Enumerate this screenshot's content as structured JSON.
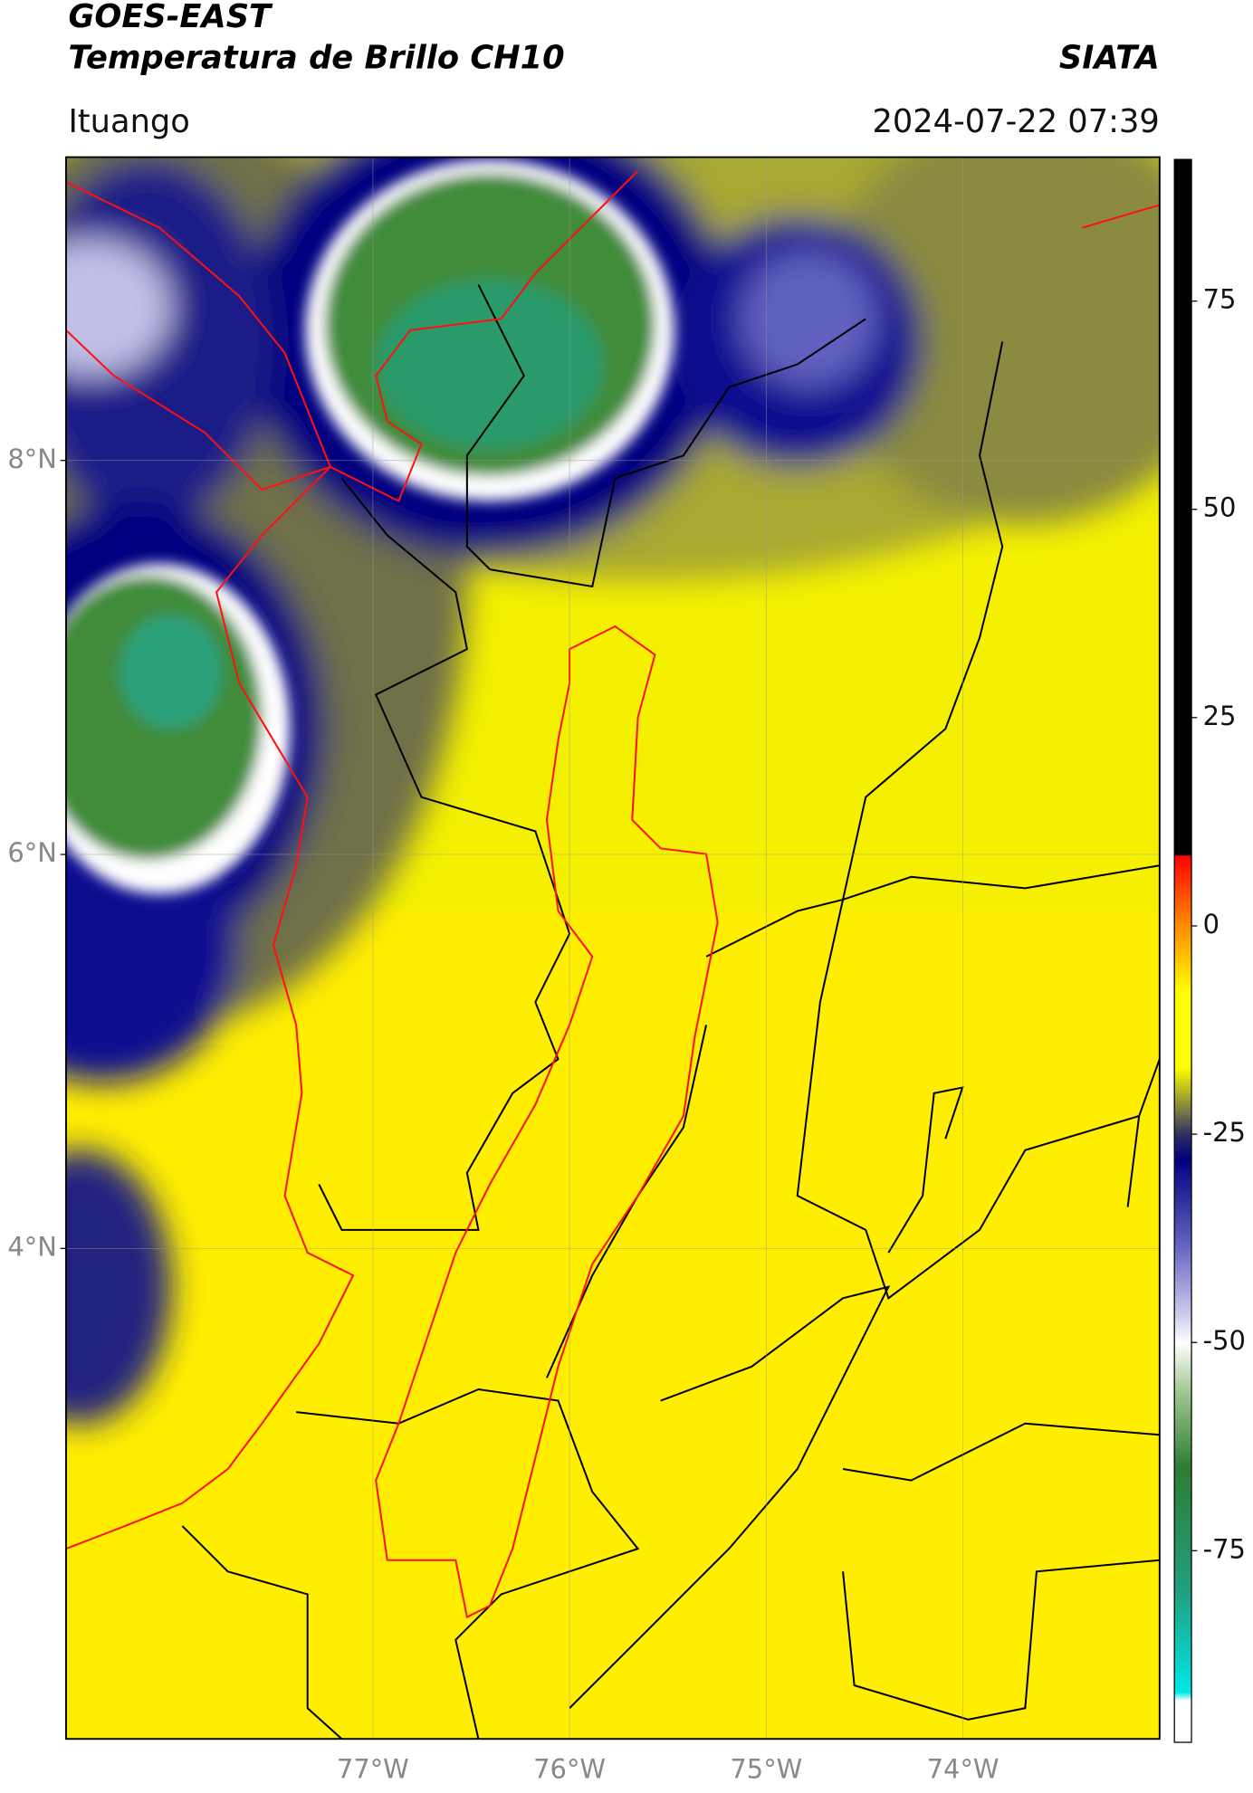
{
  "header": {
    "title": "GOES-EAST",
    "subtitle": "Temperatura de Brillo CH10",
    "source": "SIATA",
    "location": "Ituango",
    "datetime": "2024-07-22 07:39"
  },
  "map": {
    "xlim": [
      -78.56,
      -73.0
    ],
    "ylim": [
      1.51,
      9.54
    ],
    "xticks": [
      {
        "value": -77,
        "label": "77°W"
      },
      {
        "value": -76,
        "label": "76°W"
      },
      {
        "value": -75,
        "label": "75°W"
      },
      {
        "value": -74,
        "label": "74°W"
      }
    ],
    "yticks": [
      {
        "value": 8,
        "label": "8°N"
      },
      {
        "value": 6,
        "label": "6°N"
      },
      {
        "value": 4,
        "label": "4°N"
      }
    ]
  },
  "colorbar": {
    "lim": [
      -98,
      92
    ],
    "ticks": [
      75,
      50,
      25,
      0,
      -25,
      -50,
      -75
    ],
    "stops": [
      {
        "value": 92,
        "color": "#000000"
      },
      {
        "value": 8.5,
        "color": "#000000"
      },
      {
        "value": 8.4,
        "color": "#ff0000"
      },
      {
        "value": 0,
        "color": "#ff8c00"
      },
      {
        "value": -8,
        "color": "#ffff00"
      },
      {
        "value": -17,
        "color": "#ffff00"
      },
      {
        "value": -22,
        "color": "#808040"
      },
      {
        "value": -25,
        "color": "#303060"
      },
      {
        "value": -28,
        "color": "#000080"
      },
      {
        "value": -38,
        "color": "#6060c0"
      },
      {
        "value": -47,
        "color": "#d0d0f0"
      },
      {
        "value": -50,
        "color": "#ffffff"
      },
      {
        "value": -56,
        "color": "#a0c890"
      },
      {
        "value": -65,
        "color": "#2e7d32"
      },
      {
        "value": -80,
        "color": "#20a080"
      },
      {
        "value": -92,
        "color": "#00e8e8"
      },
      {
        "value": -93,
        "color": "#ffffff"
      },
      {
        "value": -98,
        "color": "#ffffff"
      }
    ]
  }
}
